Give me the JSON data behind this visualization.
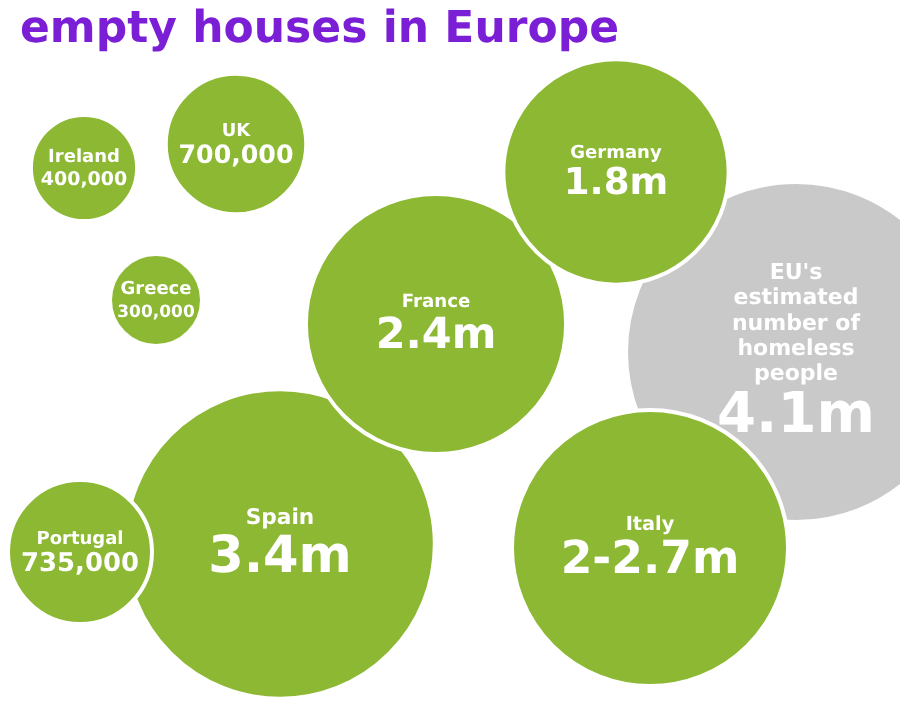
{
  "chart_data": {
    "type": "other",
    "title": "empty houses in Europe",
    "categories": [
      "Ireland",
      "UK",
      "Greece",
      "Germany",
      "France",
      "EU's estimated number of homeless people",
      "Portugal",
      "Spain",
      "Italy"
    ],
    "values": [
      400000,
      700000,
      300000,
      1800000,
      2400000,
      4100000,
      735000,
      3400000,
      null
    ],
    "value_labels": [
      "400,000",
      "700,000",
      "300,000",
      "1.8m",
      "2.4m",
      "4.1m",
      "735,000",
      "3.4m",
      "2-2.7m"
    ],
    "colors": [
      "#8cb833",
      "#8cb833",
      "#8cb833",
      "#8cb833",
      "#8cb833",
      "#c9c9c9",
      "#8cb833",
      "#8cb833",
      "#8cb833"
    ]
  }
}
